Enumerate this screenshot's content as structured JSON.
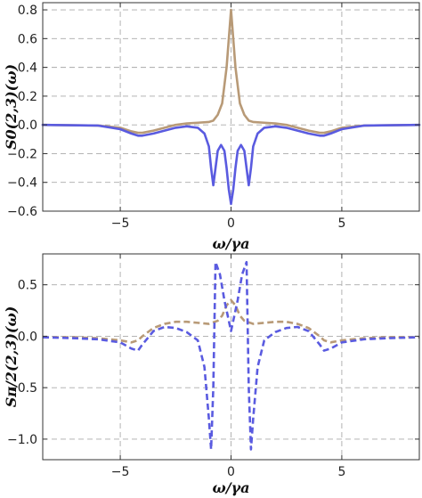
{
  "chart_data": [
    {
      "type": "line",
      "xlabel": "ω/γa",
      "ylabel": "S0(2,3)(ω)",
      "xlim": [
        -8.5,
        8.5
      ],
      "ylim": [
        -0.6,
        0.85
      ],
      "grid": true,
      "x_ticks": [
        -5,
        0,
        5
      ],
      "x_tick_labels": [
        "−5",
        "0",
        "5"
      ],
      "y_ticks": [
        -0.6,
        -0.4,
        -0.2,
        0.0,
        0.2,
        0.4,
        0.6,
        0.8
      ],
      "y_tick_labels": [
        "−0.6",
        "−0.4",
        "−0.2",
        "0.0",
        "0.2",
        "0.4",
        "0.6",
        "0.8"
      ],
      "series": [
        {
          "color": "#b89a77",
          "dash": "solid",
          "x": [
            -8.5,
            -6,
            -5,
            -4.5,
            -4.2,
            -4,
            -3.5,
            -3,
            -2.5,
            -2,
            -1.5,
            -1,
            -0.8,
            -0.6,
            -0.4,
            -0.2,
            -0.1,
            0,
            0.1,
            0.2,
            0.4,
            0.6,
            0.8,
            1,
            1.5,
            2,
            2.5,
            3,
            3.5,
            4,
            4.2,
            4.5,
            5,
            6,
            8.5
          ],
          "y": [
            0,
            -0.005,
            -0.02,
            -0.045,
            -0.055,
            -0.055,
            -0.04,
            -0.02,
            0,
            0.01,
            0.015,
            0.02,
            0.03,
            0.07,
            0.15,
            0.4,
            0.6,
            0.8,
            0.6,
            0.4,
            0.15,
            0.07,
            0.03,
            0.02,
            0.015,
            0.01,
            0,
            -0.02,
            -0.04,
            -0.055,
            -0.055,
            -0.045,
            -0.02,
            -0.005,
            0
          ]
        },
        {
          "color": "#5a5be0",
          "dash": "solid",
          "x": [
            -8.5,
            -6,
            -5,
            -4.5,
            -4.2,
            -4,
            -3.5,
            -3,
            -2.5,
            -2,
            -1.5,
            -1.2,
            -1,
            -0.9,
            -0.8,
            -0.7,
            -0.6,
            -0.45,
            -0.3,
            -0.2,
            -0.1,
            0,
            0.1,
            0.2,
            0.3,
            0.45,
            0.6,
            0.7,
            0.8,
            0.9,
            1,
            1.2,
            1.5,
            2,
            2.5,
            3,
            3.5,
            4,
            4.2,
            4.5,
            5,
            6,
            8.5
          ],
          "y": [
            0,
            -0.005,
            -0.03,
            -0.06,
            -0.075,
            -0.075,
            -0.06,
            -0.04,
            -0.02,
            -0.01,
            -0.02,
            -0.06,
            -0.15,
            -0.3,
            -0.42,
            -0.3,
            -0.18,
            -0.14,
            -0.18,
            -0.3,
            -0.45,
            -0.55,
            -0.45,
            -0.3,
            -0.18,
            -0.14,
            -0.18,
            -0.3,
            -0.42,
            -0.3,
            -0.15,
            -0.06,
            -0.02,
            -0.01,
            -0.02,
            -0.04,
            -0.06,
            -0.075,
            -0.075,
            -0.06,
            -0.03,
            -0.005,
            0
          ]
        }
      ]
    },
    {
      "type": "line",
      "xlabel": "ω/γa",
      "ylabel": "Sπ/2(2,3)(ω)",
      "xlim": [
        -8.5,
        8.5
      ],
      "ylim": [
        -1.2,
        0.8
      ],
      "grid": true,
      "x_ticks": [
        -5,
        0,
        5
      ],
      "x_tick_labels": [
        "−5",
        "0",
        "5"
      ],
      "y_ticks": [
        -1.0,
        -0.5,
        0.0,
        0.5
      ],
      "y_tick_labels": [
        "−1.0",
        "−0.5",
        "0.0",
        "0.5"
      ],
      "series": [
        {
          "color": "#b89a77",
          "dash": "dashed",
          "x": [
            -8.5,
            -7,
            -6,
            -5,
            -4.5,
            -4.2,
            -4,
            -3.5,
            -3,
            -2.5,
            -2,
            -1.5,
            -1,
            -0.6,
            -0.4,
            -0.2,
            0,
            0.2,
            0.4,
            0.6,
            1,
            1.5,
            2,
            2.5,
            3,
            3.5,
            4,
            4.2,
            4.5,
            5,
            6,
            7,
            8.5
          ],
          "y": [
            -0.01,
            -0.01,
            -0.02,
            -0.04,
            -0.06,
            -0.04,
            0.0,
            0.08,
            0.12,
            0.14,
            0.14,
            0.13,
            0.12,
            0.15,
            0.2,
            0.3,
            0.35,
            0.3,
            0.2,
            0.15,
            0.12,
            0.13,
            0.14,
            0.14,
            0.12,
            0.08,
            0.0,
            -0.04,
            -0.06,
            -0.04,
            -0.02,
            -0.01,
            -0.01
          ]
        },
        {
          "color": "#5a5be0",
          "dash": "dashed",
          "x": [
            -8.5,
            -7,
            -6,
            -5,
            -4.5,
            -4.2,
            -4,
            -3.5,
            -3,
            -2.5,
            -2,
            -1.5,
            -1.2,
            -1.0,
            -0.9,
            -0.8,
            -0.7,
            -0.5,
            -0.3,
            -0.1,
            0,
            0.1,
            0.3,
            0.5,
            0.7,
            0.8,
            0.9,
            1.0,
            1.2,
            1.5,
            2,
            2.5,
            3,
            3.5,
            4,
            4.2,
            4.5,
            5,
            6,
            7,
            8.5
          ],
          "y": [
            -0.01,
            -0.02,
            -0.03,
            -0.06,
            -0.12,
            -0.14,
            -0.08,
            0.05,
            0.09,
            0.08,
            0.04,
            -0.04,
            -0.3,
            -0.8,
            -1.1,
            -0.5,
            0.72,
            0.6,
            0.35,
            0.15,
            0.05,
            0.15,
            0.35,
            0.6,
            0.72,
            -0.5,
            -1.1,
            -0.8,
            -0.3,
            -0.04,
            0.04,
            0.08,
            0.09,
            0.05,
            -0.08,
            -0.14,
            -0.12,
            -0.06,
            -0.03,
            -0.02,
            -0.01
          ]
        }
      ]
    }
  ]
}
